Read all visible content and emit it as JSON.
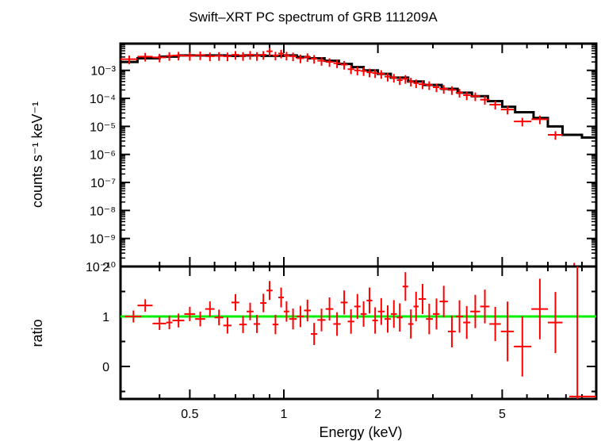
{
  "chart_data": [
    {
      "type": "line",
      "title": "Swift–XRT PC spectrum of GRB 111209A",
      "ylabel": "counts s⁻¹ keV⁻¹",
      "xscale": "log",
      "yscale": "log",
      "xlim": [
        0.3,
        10
      ],
      "ylim": [
        1e-10,
        0.009
      ],
      "ytick_labels": [
        "10⁻³",
        "10⁻⁴",
        "10⁻⁵",
        "10⁻⁶",
        "10⁻⁷",
        "10⁻⁸",
        "10⁻⁹",
        "10⁻¹⁰"
      ],
      "ytick_values": [
        0.001,
        0.0001,
        1e-05,
        1e-06,
        1e-07,
        1e-08,
        1e-09,
        1e-10
      ],
      "grid": false,
      "colors": {
        "data": "#ff0000",
        "model": "#000000"
      },
      "series": [
        {
          "role": "data",
          "points": [
            [
              0.32,
              0.0025,
              0.3,
              0.34
            ],
            [
              0.36,
              0.0031,
              0.34,
              0.38
            ],
            [
              0.4,
              0.0029,
              0.38,
              0.42
            ],
            [
              0.43,
              0.0033,
              0.42,
              0.44
            ],
            [
              0.46,
              0.0034,
              0.44,
              0.48
            ],
            [
              0.5,
              0.0033,
              0.48,
              0.52
            ],
            [
              0.54,
              0.0035,
              0.52,
              0.56
            ],
            [
              0.58,
              0.0032,
              0.56,
              0.6
            ],
            [
              0.62,
              0.0033,
              0.6,
              0.64
            ],
            [
              0.66,
              0.0032,
              0.64,
              0.68
            ],
            [
              0.7,
              0.0036,
              0.68,
              0.72
            ],
            [
              0.74,
              0.0033,
              0.72,
              0.76
            ],
            [
              0.78,
              0.0036,
              0.76,
              0.8
            ],
            [
              0.82,
              0.0033,
              0.8,
              0.84
            ],
            [
              0.86,
              0.0036,
              0.84,
              0.88
            ],
            [
              0.9,
              0.0048,
              0.88,
              0.92
            ],
            [
              0.94,
              0.0034,
              0.92,
              0.96
            ],
            [
              0.98,
              0.004,
              0.96,
              1.0
            ],
            [
              1.02,
              0.0034,
              1.0,
              1.04
            ],
            [
              1.07,
              0.0032,
              1.04,
              1.1
            ],
            [
              1.13,
              0.0027,
              1.1,
              1.16
            ],
            [
              1.19,
              0.003,
              1.16,
              1.22
            ],
            [
              1.25,
              0.0026,
              1.22,
              1.28
            ],
            [
              1.32,
              0.0022,
              1.28,
              1.36
            ],
            [
              1.4,
              0.002,
              1.36,
              1.44
            ],
            [
              1.48,
              0.0018,
              1.44,
              1.52
            ],
            [
              1.56,
              0.0016,
              1.52,
              1.6
            ],
            [
              1.64,
              0.0011,
              1.6,
              1.68
            ],
            [
              1.72,
              0.001,
              1.68,
              1.76
            ],
            [
              1.8,
              0.00095,
              1.76,
              1.84
            ],
            [
              1.88,
              0.00085,
              1.84,
              1.92
            ],
            [
              1.96,
              0.0008,
              1.92,
              2.0
            ],
            [
              2.05,
              0.00075,
              2.0,
              2.1
            ],
            [
              2.15,
              0.0006,
              2.1,
              2.2
            ],
            [
              2.25,
              0.00055,
              2.2,
              2.3
            ],
            [
              2.35,
              0.00045,
              2.3,
              2.4
            ],
            [
              2.45,
              0.0005,
              2.4,
              2.5
            ],
            [
              2.55,
              0.0004,
              2.5,
              2.6
            ],
            [
              2.65,
              0.00035,
              2.6,
              2.7
            ],
            [
              2.78,
              0.00032,
              2.7,
              2.85
            ],
            [
              2.92,
              0.0003,
              2.85,
              3.0
            ],
            [
              3.08,
              0.00025,
              3.0,
              3.15
            ],
            [
              3.25,
              0.00022,
              3.15,
              3.35
            ],
            [
              3.45,
              0.0002,
              3.35,
              3.55
            ],
            [
              3.65,
              0.00016,
              3.55,
              3.75
            ],
            [
              3.85,
              0.00013,
              3.75,
              3.95
            ],
            [
              4.1,
              0.00012,
              3.95,
              4.25
            ],
            [
              4.4,
              9e-05,
              4.25,
              4.55
            ],
            [
              4.75,
              6e-05,
              4.55,
              4.95
            ],
            [
              5.2,
              4e-05,
              4.95,
              5.45
            ],
            [
              5.8,
              1.5e-05,
              5.45,
              6.2
            ],
            [
              6.6,
              1.8e-05,
              6.2,
              7.0
            ],
            [
              7.4,
              5e-06,
              7.0,
              7.8
            ],
            [
              8.5,
              1e-10,
              7.8,
              9.2
            ]
          ]
        },
        {
          "role": "model",
          "steps": [
            [
              0.3,
              0.002
            ],
            [
              0.34,
              0.0027
            ],
            [
              0.4,
              0.0031
            ],
            [
              0.46,
              0.0034
            ],
            [
              0.55,
              0.0034
            ],
            [
              0.65,
              0.0033
            ],
            [
              0.75,
              0.0034
            ],
            [
              0.85,
              0.0033
            ],
            [
              1.0,
              0.0034
            ],
            [
              1.1,
              0.003
            ],
            [
              1.2,
              0.0027
            ],
            [
              1.35,
              0.0022
            ],
            [
              1.5,
              0.0017
            ],
            [
              1.65,
              0.0013
            ],
            [
              1.8,
              0.001
            ],
            [
              2.0,
              0.00075
            ],
            [
              2.2,
              0.00055
            ],
            [
              2.5,
              0.0004
            ],
            [
              2.8,
              0.0003
            ],
            [
              3.2,
              0.00022
            ],
            [
              3.6,
              0.00016
            ],
            [
              4.0,
              0.00012
            ],
            [
              4.5,
              8e-05
            ],
            [
              5.0,
              5e-05
            ],
            [
              5.5,
              3.2e-05
            ],
            [
              6.3,
              2e-05
            ],
            [
              7.0,
              1e-05
            ],
            [
              7.8,
              5e-06
            ],
            [
              9.0,
              4e-06
            ],
            [
              10.0,
              4e-06
            ]
          ]
        }
      ]
    },
    {
      "type": "scatter",
      "xlabel": "Energy (keV)",
      "ylabel": "ratio",
      "xscale": "log",
      "xlim": [
        0.3,
        10
      ],
      "ylim": [
        -0.65,
        2.0
      ],
      "yticks": [
        0,
        1,
        2
      ],
      "xticks": [
        0.5,
        1,
        2,
        5
      ],
      "reference_line": 1,
      "colors": {
        "data": "#ff0000",
        "reference": "#00ee00"
      },
      "points": [
        [
          0.33,
          1.0,
          0.31,
          0.35
        ],
        [
          0.36,
          1.22,
          0.34,
          0.38
        ],
        [
          0.4,
          0.86,
          0.38,
          0.42
        ],
        [
          0.43,
          0.88,
          0.42,
          0.44
        ],
        [
          0.46,
          0.92,
          0.44,
          0.48
        ],
        [
          0.5,
          1.05,
          0.48,
          0.52
        ],
        [
          0.54,
          0.95,
          0.52,
          0.56
        ],
        [
          0.58,
          1.15,
          0.56,
          0.6
        ],
        [
          0.62,
          0.98,
          0.6,
          0.64
        ],
        [
          0.66,
          0.82,
          0.64,
          0.68
        ],
        [
          0.7,
          1.28,
          0.68,
          0.72
        ],
        [
          0.74,
          0.84,
          0.72,
          0.76
        ],
        [
          0.78,
          1.1,
          0.76,
          0.8
        ],
        [
          0.82,
          0.85,
          0.8,
          0.84
        ],
        [
          0.86,
          1.27,
          0.84,
          0.88
        ],
        [
          0.9,
          1.52,
          0.88,
          0.92
        ],
        [
          0.94,
          0.84,
          0.92,
          0.96
        ],
        [
          0.98,
          1.38,
          0.96,
          1.0
        ],
        [
          1.02,
          1.1,
          1.0,
          1.04
        ],
        [
          1.07,
          0.95,
          1.04,
          1.1
        ],
        [
          1.13,
          1.0,
          1.1,
          1.16
        ],
        [
          1.19,
          1.12,
          1.16,
          1.22
        ],
        [
          1.25,
          0.65,
          1.22,
          1.28
        ],
        [
          1.32,
          0.93,
          1.28,
          1.36
        ],
        [
          1.4,
          1.15,
          1.36,
          1.44
        ],
        [
          1.48,
          0.85,
          1.44,
          1.52
        ],
        [
          1.56,
          1.28,
          1.52,
          1.6
        ],
        [
          1.64,
          0.9,
          1.6,
          1.68
        ],
        [
          1.72,
          1.2,
          1.68,
          1.76
        ],
        [
          1.8,
          1.05,
          1.76,
          1.84
        ],
        [
          1.88,
          1.32,
          1.84,
          1.92
        ],
        [
          1.96,
          0.92,
          1.92,
          2.0
        ],
        [
          2.05,
          1.1,
          2.0,
          2.1
        ],
        [
          2.15,
          0.95,
          2.1,
          2.2
        ],
        [
          2.25,
          1.05,
          2.2,
          2.3
        ],
        [
          2.35,
          0.98,
          2.3,
          2.4
        ],
        [
          2.45,
          1.6,
          2.4,
          2.5
        ],
        [
          2.55,
          0.85,
          2.5,
          2.6
        ],
        [
          2.65,
          1.2,
          2.6,
          2.7
        ],
        [
          2.78,
          1.35,
          2.7,
          2.85
        ],
        [
          2.92,
          0.95,
          2.85,
          3.0
        ],
        [
          3.08,
          1.05,
          3.0,
          3.15
        ],
        [
          3.25,
          1.3,
          3.15,
          3.35
        ],
        [
          3.45,
          0.7,
          3.35,
          3.55
        ],
        [
          3.65,
          1.0,
          3.55,
          3.75
        ],
        [
          3.85,
          0.88,
          3.75,
          3.95
        ],
        [
          4.1,
          1.1,
          3.95,
          4.25
        ],
        [
          4.4,
          1.2,
          4.25,
          4.55
        ],
        [
          4.75,
          0.85,
          4.55,
          4.95
        ],
        [
          5.2,
          0.7,
          4.95,
          5.45
        ],
        [
          5.8,
          0.4,
          5.45,
          6.2
        ],
        [
          6.6,
          1.15,
          6.2,
          7.0
        ],
        [
          7.4,
          0.88,
          7.0,
          7.8
        ],
        [
          8.7,
          -0.6,
          8.2,
          10.0
        ]
      ]
    }
  ]
}
